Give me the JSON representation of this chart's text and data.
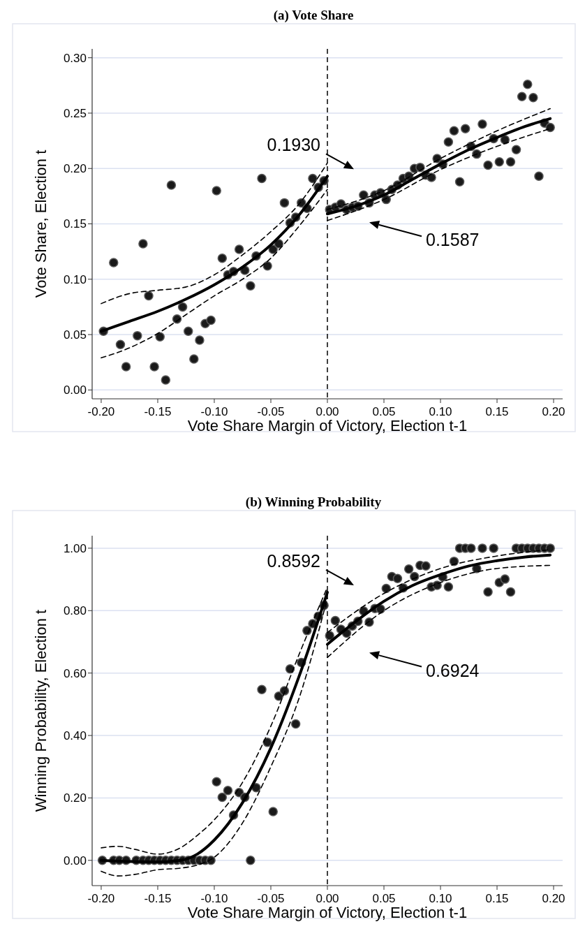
{
  "chart_data": [
    {
      "type": "scatter",
      "title": "(a) Vote Share",
      "xlabel": "Vote Share Margin of Victory, Election t-1",
      "ylabel": "Vote Share, Election t",
      "xlim": [
        -0.208,
        0.208
      ],
      "ylim": [
        -0.008,
        0.308
      ],
      "xticks": [
        {
          "value": -0.2,
          "label": "-0.20"
        },
        {
          "value": -0.15,
          "label": "-0.15"
        },
        {
          "value": -0.1,
          "label": "-0.10"
        },
        {
          "value": -0.05,
          "label": "-0.05"
        },
        {
          "value": 0,
          "label": "0.00"
        },
        {
          "value": 0.05,
          "label": "0.05"
        },
        {
          "value": 0.1,
          "label": "0.10"
        },
        {
          "value": 0.15,
          "label": "0.15"
        },
        {
          "value": 0.2,
          "label": "0.20"
        }
      ],
      "yticks": [
        {
          "value": 0,
          "label": "0.00"
        },
        {
          "value": 0.05,
          "label": "0.05"
        },
        {
          "value": 0.1,
          "label": "0.10"
        },
        {
          "value": 0.15,
          "label": "0.15"
        },
        {
          "value": 0.2,
          "label": "0.20"
        },
        {
          "value": 0.25,
          "label": "0.25"
        },
        {
          "value": 0.3,
          "label": "0.30"
        }
      ],
      "grid": "y",
      "marker": "circle",
      "ref_lines": [
        {
          "axis": "x",
          "value": 0,
          "line_style": "dashed",
          "color": "#000000"
        }
      ],
      "annotations": [
        "0.1930",
        "0.1587"
      ],
      "series": [
        {
          "color": "#1a1a1a",
          "x": [
            -0.198,
            -0.189,
            -0.183,
            -0.178,
            -0.168,
            -0.163,
            -0.158,
            -0.153,
            -0.148,
            -0.143,
            -0.138,
            -0.133,
            -0.128,
            -0.123,
            -0.118,
            -0.113,
            -0.108,
            -0.103,
            -0.098,
            -0.093,
            -0.088,
            -0.083,
            -0.078,
            -0.073,
            -0.068,
            -0.063,
            -0.058,
            -0.053,
            -0.048,
            -0.043,
            -0.038,
            -0.033,
            -0.028,
            -0.023,
            -0.018,
            -0.013,
            -0.008,
            -0.003,
            0.002,
            0.007,
            0.012,
            0.017,
            0.022,
            0.027,
            0.032,
            0.037,
            0.042,
            0.047,
            0.052,
            0.057,
            0.062,
            0.067,
            0.072,
            0.077,
            0.082,
            0.087,
            0.092,
            0.097,
            0.102,
            0.107,
            0.112,
            0.117,
            0.122,
            0.127,
            0.132,
            0.137,
            0.142,
            0.147,
            0.152,
            0.157,
            0.162,
            0.167,
            0.172,
            0.177,
            0.182,
            0.187,
            0.192,
            0.197
          ],
          "values": [
            0.053,
            0.115,
            0.041,
            0.021,
            0.049,
            0.132,
            0.085,
            0.021,
            0.048,
            0.009,
            0.185,
            0.064,
            0.075,
            0.053,
            0.028,
            0.045,
            0.06,
            0.063,
            0.18,
            0.119,
            0.104,
            0.107,
            0.127,
            0.108,
            0.094,
            0.121,
            0.191,
            0.112,
            0.127,
            0.132,
            0.169,
            0.151,
            0.156,
            0.169,
            0.164,
            0.191,
            0.183,
            0.189,
            0.163,
            0.165,
            0.168,
            0.163,
            0.165,
            0.166,
            0.176,
            0.169,
            0.176,
            0.178,
            0.172,
            0.181,
            0.185,
            0.191,
            0.193,
            0.2,
            0.201,
            0.194,
            0.192,
            0.209,
            0.204,
            0.224,
            0.234,
            0.188,
            0.236,
            0.22,
            0.213,
            0.24,
            0.203,
            0.227,
            0.206,
            0.226,
            0.206,
            0.217,
            0.265,
            0.276,
            0.264,
            0.193,
            0.241,
            0.237
          ]
        },
        {
          "type": "line",
          "color": "#000000",
          "line_style": "solid",
          "marker": "none",
          "x": [
            -0.2,
            -0.175,
            -0.15,
            -0.125,
            -0.1,
            -0.075,
            -0.05,
            -0.025,
            0
          ],
          "values": [
            0.053,
            0.062,
            0.071,
            0.082,
            0.095,
            0.111,
            0.131,
            0.158,
            0.193
          ]
        },
        {
          "type": "line",
          "color": "#000000",
          "line_style": "dashed",
          "marker": "none",
          "x": [
            -0.2,
            -0.175,
            -0.15,
            -0.125,
            -0.1,
            -0.075,
            -0.05,
            -0.025,
            0
          ],
          "values": [
            0.078,
            0.087,
            0.09,
            0.093,
            0.104,
            0.122,
            0.143,
            0.168,
            0.205
          ]
        },
        {
          "type": "line",
          "color": "#000000",
          "line_style": "dashed",
          "marker": "none",
          "x": [
            -0.2,
            -0.175,
            -0.15,
            -0.125,
            -0.1,
            -0.075,
            -0.05,
            -0.025,
            0
          ],
          "values": [
            0.029,
            0.038,
            0.051,
            0.068,
            0.085,
            0.1,
            0.119,
            0.148,
            0.181
          ]
        },
        {
          "type": "line",
          "color": "#000000",
          "line_style": "solid",
          "marker": "none",
          "x": [
            0,
            0.025,
            0.05,
            0.075,
            0.1,
            0.125,
            0.15,
            0.175,
            0.197
          ],
          "values": [
            0.159,
            0.166,
            0.176,
            0.19,
            0.204,
            0.217,
            0.228,
            0.238,
            0.245
          ]
        },
        {
          "type": "line",
          "color": "#000000",
          "line_style": "dashed",
          "marker": "none",
          "x": [
            0,
            0.05,
            0.1,
            0.15,
            0.197
          ],
          "values": [
            0.163,
            0.18,
            0.209,
            0.234,
            0.254
          ]
        },
        {
          "type": "line",
          "color": "#000000",
          "line_style": "dashed",
          "marker": "none",
          "x": [
            0,
            0.05,
            0.1,
            0.15,
            0.197
          ],
          "values": [
            0.153,
            0.172,
            0.199,
            0.22,
            0.236
          ]
        }
      ]
    },
    {
      "type": "scatter",
      "title": "(b) Winning Probability",
      "xlabel": "Vote Share Margin of Victory, Election t-1",
      "ylabel": "Winning Probability, Election t",
      "xlim": [
        -0.208,
        0.208
      ],
      "ylim": [
        -0.081,
        1.04
      ],
      "xticks": [
        {
          "value": -0.2,
          "label": "-0.20"
        },
        {
          "value": -0.15,
          "label": "-0.15"
        },
        {
          "value": -0.1,
          "label": "-0.10"
        },
        {
          "value": -0.05,
          "label": "-0.05"
        },
        {
          "value": 0,
          "label": "0.00"
        },
        {
          "value": 0.05,
          "label": "0.05"
        },
        {
          "value": 0.1,
          "label": "0.10"
        },
        {
          "value": 0.15,
          "label": "0.15"
        },
        {
          "value": 0.2,
          "label": "0.20"
        }
      ],
      "yticks": [
        {
          "value": 0,
          "label": "0.00"
        },
        {
          "value": 0.2,
          "label": "0.20"
        },
        {
          "value": 0.4,
          "label": "0.40"
        },
        {
          "value": 0.6,
          "label": "0.60"
        },
        {
          "value": 0.8,
          "label": "0.80"
        },
        {
          "value": 1,
          "label": "1.00"
        }
      ],
      "grid": "y",
      "marker": "circle",
      "ref_lines": [
        {
          "axis": "x",
          "value": 0,
          "line_style": "dashed",
          "color": "#000000"
        }
      ],
      "annotations": [
        "0.8592",
        "0.6924"
      ],
      "series": [
        {
          "color": "#1a1a1a",
          "x": [
            -0.199,
            -0.189,
            -0.184,
            -0.178,
            -0.169,
            -0.163,
            -0.158,
            -0.153,
            -0.148,
            -0.143,
            -0.138,
            -0.133,
            -0.128,
            -0.123,
            -0.118,
            -0.113,
            -0.108,
            -0.103,
            -0.098,
            -0.093,
            -0.088,
            -0.083,
            -0.078,
            -0.073,
            -0.068,
            -0.063,
            -0.058,
            -0.053,
            -0.048,
            -0.043,
            -0.038,
            -0.033,
            -0.028,
            -0.023,
            -0.018,
            -0.013,
            -0.008,
            -0.003,
            0.002,
            0.007,
            0.012,
            0.017,
            0.022,
            0.027,
            0.032,
            0.037,
            0.042,
            0.047,
            0.052,
            0.057,
            0.062,
            0.067,
            0.072,
            0.077,
            0.082,
            0.087,
            0.092,
            0.097,
            0.102,
            0.107,
            0.112,
            0.117,
            0.122,
            0.127,
            0.132,
            0.137,
            0.142,
            0.147,
            0.152,
            0.157,
            0.162,
            0.167,
            0.172,
            0.177,
            0.182,
            0.187,
            0.192,
            0.197
          ],
          "values": [
            0,
            0,
            0,
            0,
            0,
            0,
            0,
            0,
            0,
            0,
            0,
            0,
            0,
            0,
            0,
            0,
            0,
            0,
            0.252,
            0.202,
            0.224,
            0.145,
            0.217,
            0.202,
            0,
            0.233,
            0.547,
            0.378,
            0.156,
            0.526,
            0.543,
            0.613,
            0.437,
            0.634,
            0.736,
            0.758,
            0.782,
            0.817,
            0.72,
            0.768,
            0.74,
            0.728,
            0.751,
            0.766,
            0.799,
            0.763,
            0.807,
            0.805,
            0.871,
            0.909,
            0.903,
            0.873,
            0.933,
            0.909,
            0.945,
            0.943,
            0.876,
            0.881,
            0.908,
            0.876,
            0.958,
            1,
            1,
            1,
            0.935,
            1,
            0.86,
            1,
            0.89,
            0.901,
            0.86,
            1,
            1,
            1,
            1,
            1,
            1,
            1
          ]
        },
        {
          "type": "line",
          "color": "#000000",
          "line_style": "solid",
          "marker": "none",
          "x": [
            -0.2,
            -0.175,
            -0.15,
            -0.13,
            -0.115,
            -0.1,
            -0.075,
            -0.05,
            -0.025,
            0
          ],
          "values": [
            0,
            -0.004,
            -0.005,
            0,
            0.02,
            0.065,
            0.185,
            0.36,
            0.59,
            0.859
          ]
        },
        {
          "type": "line",
          "color": "#000000",
          "line_style": "dashed",
          "marker": "none",
          "x": [
            -0.2,
            -0.185,
            -0.17,
            -0.15,
            -0.13,
            -0.115,
            -0.1,
            -0.075,
            -0.05,
            -0.025,
            0
          ],
          "values": [
            0.04,
            0.045,
            0.035,
            0.02,
            0.04,
            0.08,
            0.13,
            0.25,
            0.43,
            0.66,
            0.875
          ]
        },
        {
          "type": "line",
          "color": "#000000",
          "line_style": "dashed",
          "marker": "none",
          "x": [
            -0.2,
            -0.185,
            -0.17,
            -0.15,
            -0.13,
            -0.115,
            -0.1,
            -0.075,
            -0.05,
            -0.025,
            0
          ],
          "values": [
            -0.035,
            -0.05,
            -0.045,
            -0.03,
            -0.025,
            -0.015,
            0.01,
            0.12,
            0.3,
            0.52,
            0.84
          ]
        },
        {
          "type": "line",
          "color": "#000000",
          "line_style": "solid",
          "marker": "none",
          "x": [
            0,
            0.025,
            0.05,
            0.075,
            0.1,
            0.125,
            0.15,
            0.175,
            0.197
          ],
          "values": [
            0.692,
            0.765,
            0.83,
            0.88,
            0.915,
            0.943,
            0.96,
            0.972,
            0.978
          ]
        },
        {
          "type": "line",
          "color": "#000000",
          "line_style": "dashed",
          "marker": "none",
          "x": [
            0,
            0.05,
            0.1,
            0.15,
            0.197
          ],
          "values": [
            0.73,
            0.855,
            0.935,
            0.975,
            0.995
          ]
        },
        {
          "type": "line",
          "color": "#000000",
          "line_style": "dashed",
          "marker": "none",
          "x": [
            0,
            0.05,
            0.1,
            0.15,
            0.197
          ],
          "values": [
            0.65,
            0.8,
            0.89,
            0.935,
            0.945
          ]
        }
      ]
    }
  ]
}
